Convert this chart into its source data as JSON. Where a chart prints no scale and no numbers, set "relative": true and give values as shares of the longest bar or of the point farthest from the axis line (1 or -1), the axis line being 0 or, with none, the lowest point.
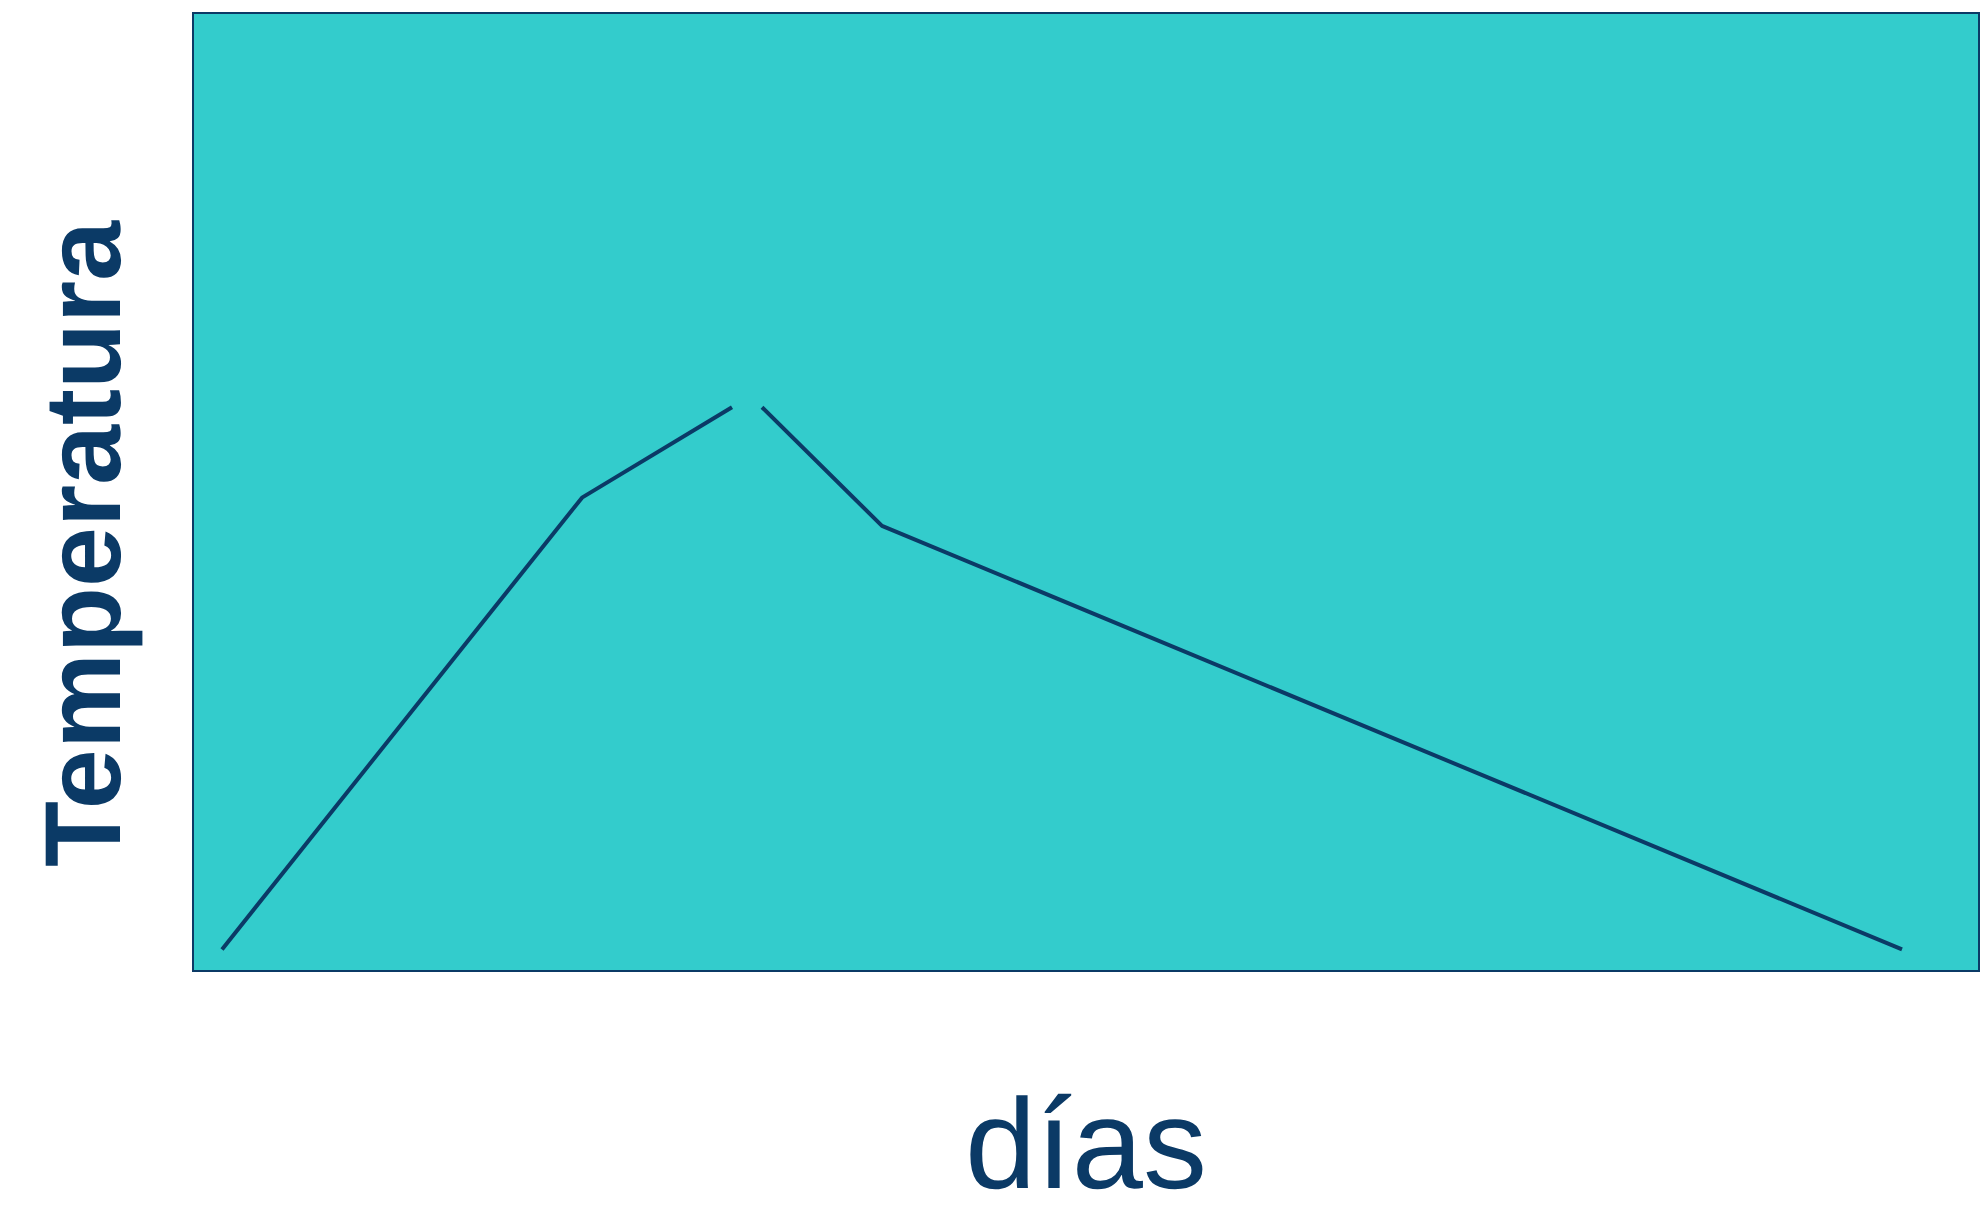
{
  "chart_data": {
    "type": "line",
    "relative": true,
    "xlabel": "días",
    "ylabel": "Temperatura",
    "marker": "none",
    "line_style": "solid",
    "categories": [
      null,
      null,
      null,
      null,
      null,
      null,
      null,
      null,
      null,
      null,
      null,
      null,
      null,
      null,
      null,
      null,
      null,
      null,
      null,
      null,
      null,
      null,
      null,
      null,
      null,
      null,
      null,
      null,
      null,
      null,
      null,
      null,
      null,
      null,
      null,
      null,
      null,
      null,
      null,
      null,
      null,
      null,
      null,
      null,
      null,
      null,
      null,
      null,
      null,
      null,
      null,
      null,
      null,
      null,
      null,
      null,
      null
    ],
    "series": [
      {
        "color": "#0b3a66",
        "values": [
          0.04,
          null,
          null,
          null,
          null,
          null,
          null,
          null,
          null,
          null,
          null,
          null,
          0.84,
          null,
          null,
          null,
          null,
          1,
          null,
          null,
          null,
          null,
          null,
          null,
          null,
          null,
          null,
          null,
          null,
          null,
          null,
          null,
          null,
          null,
          null,
          null,
          null,
          null,
          null,
          null,
          null,
          null,
          null,
          null,
          null,
          null,
          null,
          null,
          null,
          null,
          null,
          null,
          null,
          null,
          null,
          null,
          null
        ]
      },
      {
        "color": "#0b3a66",
        "values": [
          null,
          null,
          null,
          null,
          null,
          null,
          null,
          null,
          null,
          null,
          null,
          null,
          null,
          null,
          null,
          null,
          null,
          null,
          1,
          null,
          null,
          null,
          0.79,
          null,
          null,
          null,
          null,
          null,
          null,
          null,
          null,
          null,
          null,
          null,
          null,
          null,
          null,
          null,
          null,
          null,
          null,
          null,
          null,
          null,
          null,
          null,
          null,
          null,
          null,
          null,
          null,
          null,
          null,
          null,
          null,
          null,
          0.04
        ]
      }
    ]
  }
}
